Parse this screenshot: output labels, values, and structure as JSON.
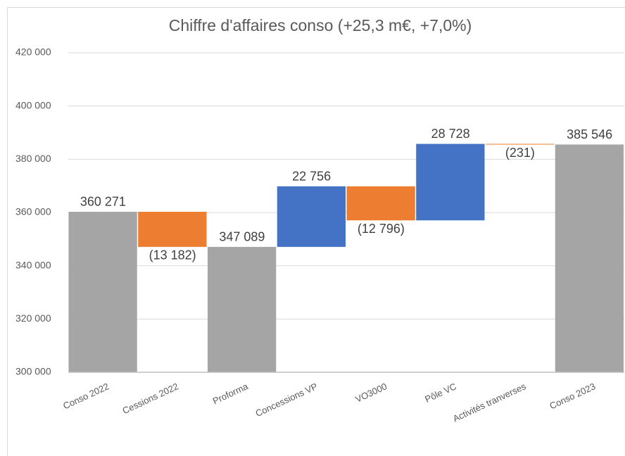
{
  "chart_data": {
    "type": "waterfall",
    "title": "Chiffre d'affaires conso (+25,3 m€, +7,0%)",
    "categories": [
      "Conso 2022",
      "Cessions 2022",
      "Proforma",
      "Concessions VP",
      "VO3000",
      "Pôle VC",
      "Activités tranverses",
      "Conso 2023"
    ],
    "values": [
      360271,
      -13182,
      347089,
      22756,
      -12796,
      28728,
      -231,
      385546
    ],
    "value_labels": [
      "360 271",
      "(13 182)",
      "347 089",
      "22 756",
      "(12 796)",
      "28 728",
      "(231)",
      "385 546"
    ],
    "totals": [
      true,
      false,
      true,
      false,
      false,
      false,
      false,
      true
    ],
    "colors": [
      "#a5a5a5",
      "#ed7d31",
      "#a5a5a5",
      "#4472c4",
      "#ed7d31",
      "#4472c4",
      "#ed7d31",
      "#a5a5a5"
    ],
    "ylim": [
      300000,
      420000
    ],
    "yticks": [
      {
        "value": 300000,
        "label": "300 000"
      },
      {
        "value": 320000,
        "label": "320 000"
      },
      {
        "value": 340000,
        "label": "340 000"
      },
      {
        "value": 360000,
        "label": "360 000"
      },
      {
        "value": 380000,
        "label": "380 000"
      },
      {
        "value": 400000,
        "label": "400 000"
      },
      {
        "value": 420000,
        "label": "420 000"
      }
    ],
    "grid": true
  }
}
